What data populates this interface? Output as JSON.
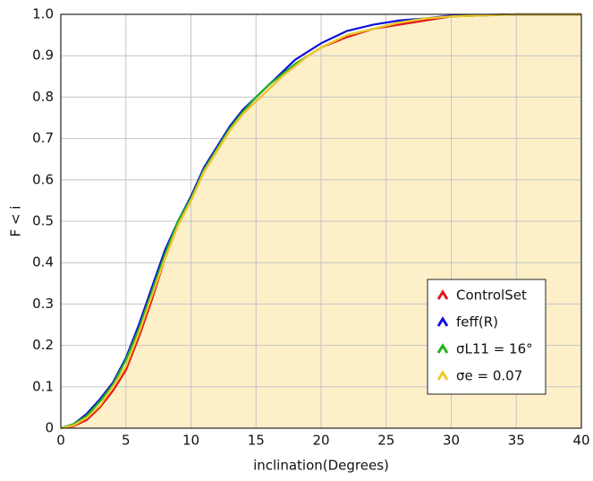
{
  "chart_data": {
    "type": "line",
    "x_label": "inclination(Degrees)",
    "y_label": "F < i",
    "x": [
      0,
      1,
      2,
      3,
      4,
      5,
      6,
      7,
      8,
      9,
      10,
      11,
      12,
      13,
      14,
      15,
      16,
      17,
      18,
      19,
      20,
      22,
      24,
      26,
      28,
      30,
      35,
      40
    ],
    "series": [
      {
        "name": "ControlSet",
        "color": "#e8141c",
        "values": [
          0,
          0.005,
          0.02,
          0.05,
          0.09,
          0.14,
          0.22,
          0.31,
          0.41,
          0.49,
          0.55,
          0.62,
          0.67,
          0.72,
          0.76,
          0.79,
          0.82,
          0.85,
          0.875,
          0.9,
          0.92,
          0.945,
          0.965,
          0.975,
          0.985,
          0.995,
          1,
          1
        ]
      },
      {
        "name": "feff(R)",
        "color": "#1010d8",
        "values": [
          0,
          0.01,
          0.035,
          0.07,
          0.11,
          0.17,
          0.25,
          0.34,
          0.43,
          0.5,
          0.56,
          0.63,
          0.68,
          0.73,
          0.77,
          0.8,
          0.83,
          0.86,
          0.89,
          0.91,
          0.93,
          0.96,
          0.975,
          0.985,
          0.99,
          0.997,
          1,
          1
        ]
      },
      {
        "name": "σL11 = 16°",
        "color": "#20b020",
        "values": [
          0,
          0.01,
          0.03,
          0.065,
          0.105,
          0.165,
          0.24,
          0.33,
          0.42,
          0.5,
          0.555,
          0.625,
          0.675,
          0.725,
          0.765,
          0.8,
          0.83,
          0.855,
          0.88,
          0.9,
          0.92,
          0.95,
          0.965,
          0.98,
          0.99,
          0.995,
          1,
          1
        ]
      },
      {
        "name": "σe = 0.07",
        "color": "#f0c828",
        "values": [
          0,
          0.007,
          0.025,
          0.055,
          0.1,
          0.15,
          0.23,
          0.32,
          0.41,
          0.49,
          0.55,
          0.62,
          0.67,
          0.72,
          0.76,
          0.79,
          0.82,
          0.85,
          0.875,
          0.9,
          0.92,
          0.95,
          0.965,
          0.98,
          0.99,
          0.995,
          1,
          1
        ]
      }
    ],
    "fill_color": "#fdf0c9",
    "xlim": [
      0,
      40
    ],
    "ylim": [
      0,
      1
    ],
    "xticks": [
      0,
      5,
      10,
      15,
      20,
      25,
      30,
      35,
      40
    ],
    "yticks": [
      0,
      0.1,
      0.2,
      0.3,
      0.4,
      0.5,
      0.6,
      0.7,
      0.8,
      0.9,
      {
        "value": 1,
        "label": "1.0"
      }
    ],
    "grid": true,
    "legend": "lower right"
  }
}
